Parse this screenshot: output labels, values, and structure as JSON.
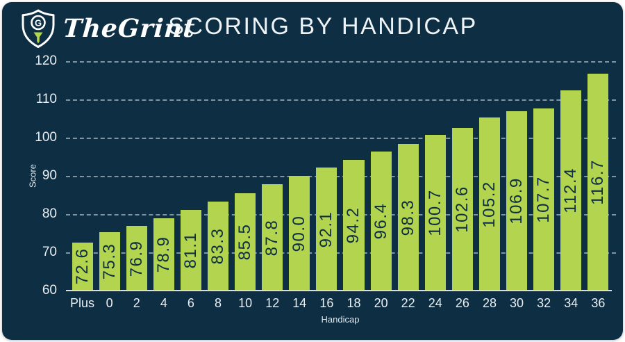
{
  "logo": {
    "brand": "TheGrint",
    "icon": "shield-golf-tee-icon",
    "monogram": "G"
  },
  "header": {
    "title": "SCORING BY HANDICAP"
  },
  "chart_data": {
    "type": "bar",
    "title": "SCORING BY HANDICAP",
    "xlabel": "Handicap",
    "ylabel": "Score",
    "categories": [
      "Plus",
      "0",
      "2",
      "4",
      "6",
      "8",
      "10",
      "12",
      "14",
      "16",
      "18",
      "20",
      "22",
      "24",
      "26",
      "28",
      "30",
      "32",
      "34",
      "36"
    ],
    "values": [
      72.6,
      75.3,
      76.9,
      78.9,
      81.1,
      83.3,
      85.5,
      87.8,
      90.0,
      92.1,
      94.2,
      96.4,
      98.3,
      100.7,
      102.6,
      105.2,
      106.9,
      107.7,
      112.4,
      116.7
    ],
    "value_labels": [
      "72.6",
      "75.3",
      "76.9",
      "78.9",
      "81.1",
      "83.3",
      "85.5",
      "87.8",
      "90.0",
      "92.1",
      "94.2",
      "96.4",
      "98.3",
      "100.7",
      "102.6",
      "105.2",
      "106.9",
      "107.7",
      "112.4",
      "116.7"
    ],
    "ylim": [
      60,
      120
    ],
    "yticks": [
      60,
      70,
      80,
      90,
      100,
      110,
      120
    ],
    "grid": "horizontal-dashed-behind-bars",
    "legend": "none",
    "bar_color": "#b2d44e",
    "background_color": "#0e2e44",
    "value_label_color": "#0e2e44",
    "tick_label_color": "#e9eff2"
  }
}
